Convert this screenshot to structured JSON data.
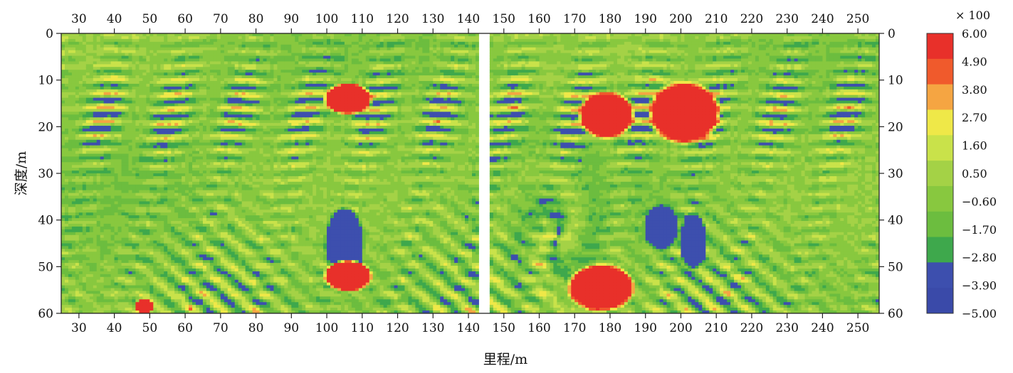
{
  "chart_data": {
    "type": "heatmap",
    "title": "",
    "xlabel": "里程/m",
    "ylabel": "深度/m",
    "xlim": [
      25,
      256
    ],
    "ylim": [
      0,
      60
    ],
    "y_inverted": true,
    "x_ticks": [
      30,
      40,
      50,
      60,
      70,
      80,
      90,
      100,
      110,
      120,
      130,
      140,
      150,
      160,
      170,
      180,
      190,
      200,
      210,
      220,
      230,
      240,
      250
    ],
    "y_ticks": [
      0,
      10,
      20,
      30,
      40,
      50,
      60
    ],
    "x_tick_labels": [
      "30",
      "40",
      "50",
      "60",
      "70",
      "80",
      "90",
      "100",
      "110",
      "120",
      "130",
      "140",
      "150",
      "160",
      "170",
      "180",
      "190",
      "200",
      "210",
      "220",
      "230",
      "240",
      "250"
    ],
    "y_tick_labels": [
      "0",
      "10",
      "20",
      "30",
      "40",
      "50",
      "60"
    ],
    "colorbar": {
      "multiplier_label": "× 100",
      "labels": [
        "6.00",
        "4.90",
        "3.80",
        "2.70",
        "1.60",
        "0.50",
        "−0.60",
        "−1.70",
        "−2.80",
        "−3.90",
        "−5.00"
      ],
      "colors": [
        "#e8302a",
        "#f05a2c",
        "#f5a542",
        "#efe848",
        "#c9e24a",
        "#a4d246",
        "#88c83f",
        "#6cbd3f",
        "#3ea84c",
        "#3d4fae",
        "#3a4aa9"
      ]
    },
    "field": {
      "background_value": -1.2,
      "gap_x": [
        143,
        145.5
      ],
      "strong_anomalies": [
        {
          "x_range": [
            100,
            110
          ],
          "y_range": [
            38,
            52
          ],
          "value": -5.0
        },
        {
          "x_range": [
            200,
            207
          ],
          "y_range": [
            39,
            50
          ],
          "value": -5.0
        },
        {
          "x_range": [
            190,
            199
          ],
          "y_range": [
            37,
            46
          ],
          "value": -4.5
        },
        {
          "x_range": [
            100,
            112
          ],
          "y_range": [
            11,
            17
          ],
          "value": 6.0
        },
        {
          "x_range": [
            172,
            186
          ],
          "y_range": [
            13,
            22
          ],
          "value": 5.5
        },
        {
          "x_range": [
            192,
            210
          ],
          "y_range": [
            11,
            23
          ],
          "value": 5.5
        },
        {
          "x_range": [
            100,
            112
          ],
          "y_range": [
            49,
            55
          ],
          "value": 6.0
        },
        {
          "x_range": [
            169,
            186
          ],
          "y_range": [
            50,
            59
          ],
          "value": 5.5
        },
        {
          "x_range": [
            46,
            51
          ],
          "y_range": [
            57,
            60
          ],
          "value": 6.0
        }
      ]
    }
  }
}
